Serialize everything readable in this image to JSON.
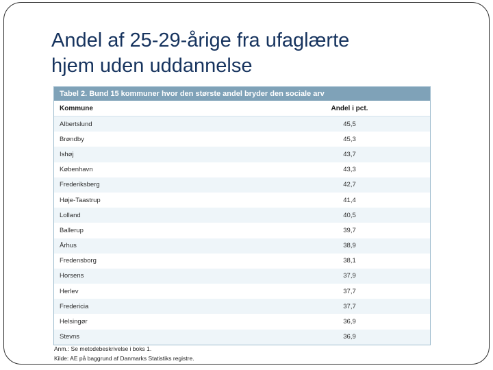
{
  "slide": {
    "title": {
      "line1": "Andel af 25-29-årige fra ufaglærte",
      "line2": "hjem uden uddannelse"
    }
  },
  "table": {
    "caption": "Tabel 2. Bund 15 kommuner hvor den største andel bryder den sociale arv",
    "columns": {
      "kommune": "Kommune",
      "andel": "Andel i pct."
    },
    "rows": [
      {
        "kommune": "Albertslund",
        "andel": "45,5"
      },
      {
        "kommune": "Brøndby",
        "andel": "45,3"
      },
      {
        "kommune": "Ishøj",
        "andel": "43,7"
      },
      {
        "kommune": "København",
        "andel": "43,3"
      },
      {
        "kommune": "Frederiksberg",
        "andel": "42,7"
      },
      {
        "kommune": "Høje-Taastrup",
        "andel": "41,4"
      },
      {
        "kommune": "Lolland",
        "andel": "40,5"
      },
      {
        "kommune": "Ballerup",
        "andel": "39,7"
      },
      {
        "kommune": "Århus",
        "andel": "38,9"
      },
      {
        "kommune": "Fredensborg",
        "andel": "38,1"
      },
      {
        "kommune": "Horsens",
        "andel": "37,9"
      },
      {
        "kommune": "Herlev",
        "andel": "37,7"
      },
      {
        "kommune": "Fredericia",
        "andel": "37,7"
      },
      {
        "kommune": "Helsingør",
        "andel": "36,9"
      },
      {
        "kommune": "Stevns",
        "andel": "36,9"
      }
    ],
    "note": "Anm.: Se metodebeskrivelse i boks 1.",
    "source": "Kilde: AE på baggrund af Danmarks Statistiks registre."
  },
  "colors": {
    "title_text": "#16335e",
    "caption_bg": "#7fa2b8",
    "caption_text": "#ffffff",
    "row_alt_bg": "#eef5f9",
    "table_border": "#9fbcce",
    "frame_border": "#2e2e2e"
  },
  "chart_data": {
    "type": "table",
    "title": "Tabel 2. Bund 15 kommuner hvor den største andel bryder den sociale arv",
    "columns": [
      "Kommune",
      "Andel i pct."
    ],
    "categories": [
      "Albertslund",
      "Brøndby",
      "Ishøj",
      "København",
      "Frederiksberg",
      "Høje-Taastrup",
      "Lolland",
      "Ballerup",
      "Århus",
      "Fredensborg",
      "Horsens",
      "Herlev",
      "Fredericia",
      "Helsingør",
      "Stevns"
    ],
    "values": [
      45.5,
      45.3,
      43.7,
      43.3,
      42.7,
      41.4,
      40.5,
      39.7,
      38.9,
      38.1,
      37.9,
      37.7,
      37.7,
      36.9,
      36.9
    ],
    "note": "Anm.: Se metodebeskrivelse i boks 1.",
    "source": "Kilde: AE på baggrund af Danmarks Statistiks registre."
  }
}
